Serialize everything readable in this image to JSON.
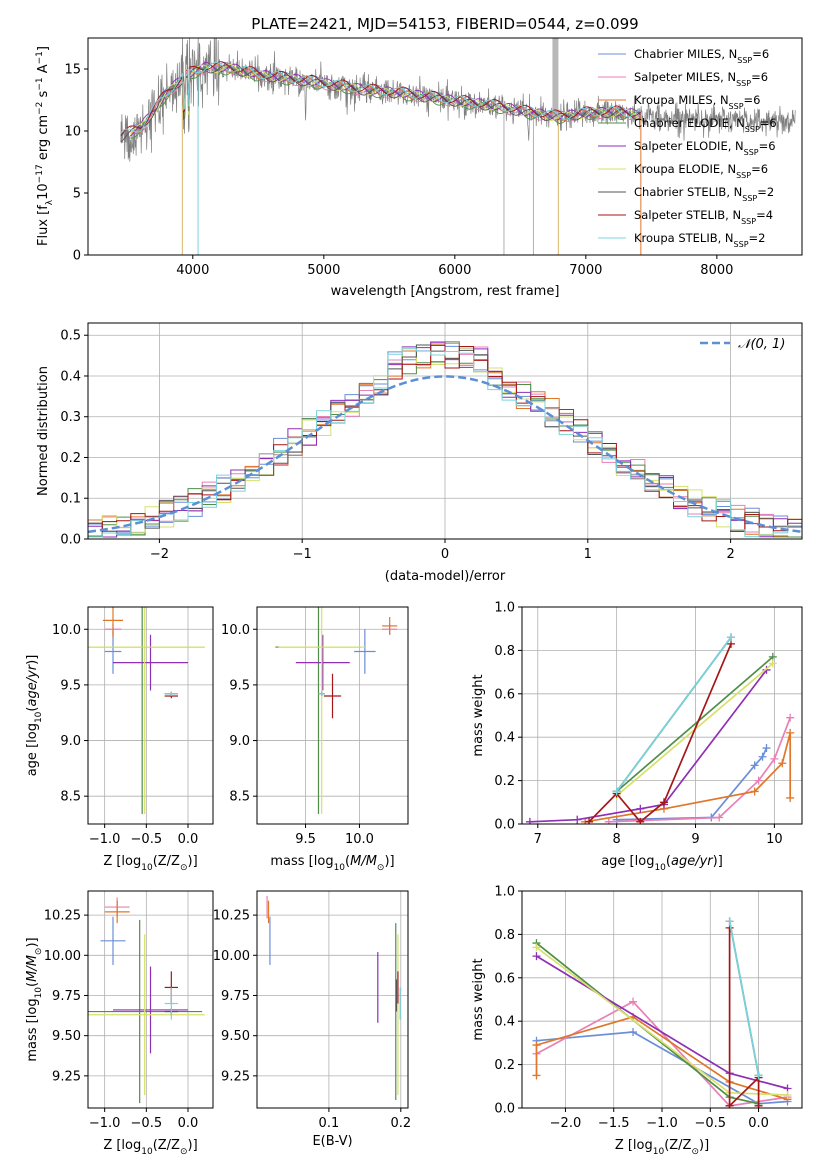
{
  "figure_title": "PLATE=2421, MJD=54153, FIBERID=0544, z=0.099",
  "colors": {
    "Chabrier MILES": "#6b8ed8",
    "Salpeter MILES": "#e87fb6",
    "Kroupa MILES": "#e0762a",
    "Chabrier ELODIE": "#4f8f48",
    "Salpeter ELODIE": "#8e2fb5",
    "Kroupa ELODIE": "#d7e06c",
    "Chabrier STELIB": "#555555",
    "Salpeter STELIB": "#a51616",
    "Kroupa STELIB": "#78d4dc"
  },
  "chart_data": [
    {
      "id": "spectrum",
      "type": "line",
      "title": "PLATE=2421, MJD=54153, FIBERID=0544, z=0.099",
      "xlabel": "wavelength [Angstrom, rest frame]",
      "ylabel": "Flux [fλ10⁻¹⁷ erg cm⁻² s⁻¹ A⁻¹]",
      "xlim": [
        3200,
        8650
      ],
      "ylim": [
        0,
        17.5
      ],
      "xticks": [
        4000,
        5000,
        6000,
        7000,
        8000
      ],
      "yticks": [
        0,
        5,
        10,
        15
      ],
      "legend_position": "upper-right",
      "legend": [
        {
          "name": "Chabrier MILES",
          "nssp": "6"
        },
        {
          "name": "Salpeter MILES",
          "nssp": "6"
        },
        {
          "name": "Kroupa MILES",
          "nssp": "6"
        },
        {
          "name": "Chabrier ELODIE",
          "nssp": "6"
        },
        {
          "name": "Salpeter ELODIE",
          "nssp": "6"
        },
        {
          "name": "Kroupa ELODIE",
          "nssp": "6"
        },
        {
          "name": "Chabrier STELIB",
          "nssp": "2"
        },
        {
          "name": "Salpeter STELIB",
          "nssp": "4"
        },
        {
          "name": "Kroupa STELIB",
          "nssp": "2"
        }
      ],
      "continuum": {
        "x": [
          3450,
          3600,
          3800,
          3950,
          4100,
          4300,
          4500,
          4800,
          5000,
          5300,
          5600,
          6000,
          6300,
          6600,
          6800,
          7000,
          7200,
          7400,
          7600,
          7800,
          8000,
          8200,
          8400,
          8600
        ],
        "y": [
          9.5,
          10.2,
          13.0,
          14.5,
          15.1,
          15.0,
          14.5,
          14.1,
          13.8,
          13.3,
          13.0,
          12.4,
          12.0,
          11.4,
          11.1,
          11.4,
          11.5,
          11.3,
          11.0,
          11.1,
          10.9,
          10.9,
          10.8,
          10.9
        ]
      }
    },
    {
      "id": "residuals",
      "type": "histogram",
      "xlabel": "(data-model)/error",
      "ylabel": "Normed distribution",
      "xlim": [
        -2.5,
        2.5
      ],
      "ylim": [
        0,
        0.53
      ],
      "xticks": [
        -2,
        -1,
        0,
        1,
        2
      ],
      "yticks": [
        0.0,
        0.1,
        0.2,
        0.3,
        0.4,
        0.5
      ],
      "reference_label": "𝒩(0, 1)",
      "bin_width": 0.1
    },
    {
      "id": "age_vs_Z",
      "type": "errorbar",
      "xlabel": "Z [log10(Z/Z⊙)]",
      "ylabel": "age [log10(age/yr)]",
      "xlim": [
        -1.2,
        0.3
      ],
      "ylim": [
        8.25,
        10.2
      ],
      "xticks": [
        -1.0,
        -0.5,
        0.0
      ],
      "yticks": [
        8.5,
        9.0,
        9.5,
        10.0
      ],
      "points": [
        {
          "model": "Chabrier MILES",
          "x": -0.9,
          "y": 9.8,
          "xerr": 0.1,
          "yerr": 0.2
        },
        {
          "model": "Salpeter MILES",
          "x": -0.9,
          "y": 10.0,
          "xerr": 0.1,
          "yerr": 0.05
        },
        {
          "model": "Kroupa MILES",
          "x": -0.9,
          "y": 10.08,
          "xerr": 0.12,
          "yerr": 0.15
        },
        {
          "model": "Chabrier ELODIE",
          "x": -0.55,
          "y": 9.84,
          "xerr": 0.75,
          "yerr": 1.5
        },
        {
          "model": "Salpeter ELODIE",
          "x": -0.45,
          "y": 9.7,
          "xerr": 0.45,
          "yerr": 0.25
        },
        {
          "model": "Kroupa ELODIE",
          "x": -0.52,
          "y": 9.84,
          "xerr": 0.72,
          "yerr": 1.5
        },
        {
          "model": "Chabrier STELIB",
          "x": -0.2,
          "y": 9.42,
          "xerr": 0.08,
          "yerr": 0.02
        },
        {
          "model": "Salpeter STELIB",
          "x": -0.2,
          "y": 9.4,
          "xerr": 0.08,
          "yerr": 0.02
        },
        {
          "model": "Kroupa STELIB",
          "x": -0.2,
          "y": 9.42,
          "xerr": 0.08,
          "yerr": 0.02
        }
      ]
    },
    {
      "id": "age_vs_mass",
      "type": "errorbar",
      "xlabel": "mass [log10(M/M⊙)]",
      "ylabel": "",
      "xlim": [
        9.05,
        10.45
      ],
      "ylim": [
        8.25,
        10.2
      ],
      "xticks": [
        9.5,
        10.0
      ],
      "yticks": [
        8.5,
        9.0,
        9.5,
        10.0
      ],
      "points": [
        {
          "model": "Chabrier MILES",
          "x": 10.05,
          "y": 9.8,
          "xerr": 0.1,
          "yerr": 0.2
        },
        {
          "model": "Salpeter MILES",
          "x": 10.28,
          "y": 10.0,
          "xerr": 0.07,
          "yerr": 0.05
        },
        {
          "model": "Kroupa MILES",
          "x": 10.28,
          "y": 10.03,
          "xerr": 0.07,
          "yerr": 0.08
        },
        {
          "model": "Chabrier ELODIE",
          "x": 9.62,
          "y": 9.84,
          "xerr": 0.4,
          "yerr": 1.5
        },
        {
          "model": "Salpeter ELODIE",
          "x": 9.66,
          "y": 9.7,
          "xerr": 0.25,
          "yerr": 0.25
        },
        {
          "model": "Kroupa ELODIE",
          "x": 9.65,
          "y": 9.84,
          "xerr": 0.4,
          "yerr": 1.5
        },
        {
          "model": "Chabrier STELIB",
          "x": 9.65,
          "y": 9.42,
          "xerr": 0.03,
          "yerr": 0.02
        },
        {
          "model": "Salpeter STELIB",
          "x": 9.75,
          "y": 9.4,
          "xerr": 0.08,
          "yerr": 0.2
        },
        {
          "model": "Kroupa STELIB",
          "x": 9.65,
          "y": 9.42,
          "xerr": 0.03,
          "yerr": 0.02
        }
      ]
    },
    {
      "id": "weight_vs_age",
      "type": "line",
      "xlabel": "age [log10(age/yr)]",
      "ylabel": "mass weight",
      "xlim": [
        6.8,
        10.35
      ],
      "ylim": [
        0,
        1.0
      ],
      "xticks": [
        7,
        8,
        9,
        10
      ],
      "yticks": [
        0.0,
        0.2,
        0.4,
        0.6,
        0.8,
        1.0
      ],
      "series": [
        {
          "model": "Chabrier MILES",
          "x": [
            8.0,
            9.2,
            9.75,
            9.85,
            9.9
          ],
          "y": [
            0.02,
            0.03,
            0.27,
            0.31,
            0.35
          ]
        },
        {
          "model": "Salpeter MILES",
          "x": [
            7.9,
            9.3,
            9.8,
            10.0,
            10.2
          ],
          "y": [
            0.01,
            0.03,
            0.2,
            0.3,
            0.49
          ]
        },
        {
          "model": "Kroupa MILES",
          "x": [
            7.6,
            8.6,
            9.75,
            10.1,
            10.2,
            10.2
          ],
          "y": [
            0.01,
            0.07,
            0.15,
            0.28,
            0.42,
            0.12
          ]
        },
        {
          "model": "Chabrier ELODIE",
          "x": [
            8.0,
            9.98
          ],
          "y": [
            0.15,
            0.77
          ]
        },
        {
          "model": "Salpeter ELODIE",
          "x": [
            6.9,
            7.5,
            8.3,
            8.6,
            9.9
          ],
          "y": [
            0.01,
            0.02,
            0.07,
            0.09,
            0.71
          ]
        },
        {
          "model": "Kroupa ELODIE",
          "x": [
            8.0,
            9.98
          ],
          "y": [
            0.13,
            0.74
          ]
        },
        {
          "model": "Chabrier STELIB",
          "x": [
            8.0,
            9.45
          ],
          "y": [
            0.15,
            0.86
          ]
        },
        {
          "model": "Salpeter STELIB",
          "x": [
            7.65,
            8.0,
            8.3,
            8.6,
            9.45
          ],
          "y": [
            0.01,
            0.14,
            0.01,
            0.1,
            0.83
          ]
        },
        {
          "model": "Kroupa STELIB",
          "x": [
            8.0,
            9.45
          ],
          "y": [
            0.15,
            0.86
          ]
        }
      ]
    },
    {
      "id": "mass_vs_Z",
      "type": "errorbar",
      "xlabel": "Z [log10(Z/Z⊙)]",
      "ylabel": "mass [log10(M/M⊙)]",
      "xlim": [
        -1.2,
        0.3
      ],
      "ylim": [
        9.05,
        10.4
      ],
      "xticks": [
        -1.0,
        -0.5,
        0.0
      ],
      "yticks": [
        9.25,
        9.5,
        9.75,
        10.0,
        10.25
      ],
      "points": [
        {
          "model": "Chabrier MILES",
          "x": -0.9,
          "y": 10.09,
          "xerr": 0.15,
          "yerr": 0.15
        },
        {
          "model": "Salpeter MILES",
          "x": -0.85,
          "y": 10.3,
          "xerr": 0.15,
          "yerr": 0.06
        },
        {
          "model": "Kroupa MILES",
          "x": -0.85,
          "y": 10.27,
          "xerr": 0.15,
          "yerr": 0.07
        },
        {
          "model": "Chabrier ELODIE",
          "x": -0.58,
          "y": 9.65,
          "xerr": 0.75,
          "yerr": 0.57
        },
        {
          "model": "Salpeter ELODIE",
          "x": -0.45,
          "y": 9.66,
          "xerr": 0.45,
          "yerr": 0.27
        },
        {
          "model": "Kroupa ELODIE",
          "x": -0.52,
          "y": 9.63,
          "xerr": 0.72,
          "yerr": 0.5
        },
        {
          "model": "Chabrier STELIB",
          "x": -0.2,
          "y": 9.65,
          "xerr": 0.08,
          "yerr": 0.02
        },
        {
          "model": "Salpeter STELIB",
          "x": -0.2,
          "y": 9.8,
          "xerr": 0.08,
          "yerr": 0.1
        },
        {
          "model": "Kroupa STELIB",
          "x": -0.2,
          "y": 9.7,
          "xerr": 0.08,
          "yerr": 0.1
        }
      ]
    },
    {
      "id": "mass_vs_ebv",
      "type": "errorbar",
      "xlabel": "E(B-V)",
      "ylabel": "",
      "xlim": [
        0.0,
        0.21
      ],
      "ylim": [
        9.05,
        10.4
      ],
      "xticks": [
        0.1,
        0.2
      ],
      "yticks": [
        9.25,
        9.5,
        9.75,
        10.0,
        10.25
      ],
      "points": [
        {
          "model": "Chabrier MILES",
          "x": 0.018,
          "y": 10.09,
          "xerr": 0.0,
          "yerr": 0.15
        },
        {
          "model": "Salpeter MILES",
          "x": 0.014,
          "y": 10.3,
          "xerr": 0.0,
          "yerr": 0.07
        },
        {
          "model": "Kroupa MILES",
          "x": 0.016,
          "y": 10.27,
          "xerr": 0.0,
          "yerr": 0.07
        },
        {
          "model": "Chabrier ELODIE",
          "x": 0.193,
          "y": 9.65,
          "xerr": 0.0,
          "yerr": 0.55
        },
        {
          "model": "Salpeter ELODIE",
          "x": 0.168,
          "y": 9.8,
          "xerr": 0.0,
          "yerr": 0.22
        },
        {
          "model": "Kroupa ELODIE",
          "x": 0.196,
          "y": 9.63,
          "xerr": 0.0,
          "yerr": 0.5
        },
        {
          "model": "Chabrier STELIB",
          "x": 0.194,
          "y": 9.75,
          "xerr": 0.0,
          "yerr": 0.1
        },
        {
          "model": "Salpeter STELIB",
          "x": 0.196,
          "y": 9.8,
          "xerr": 0.0,
          "yerr": 0.1
        },
        {
          "model": "Kroupa STELIB",
          "x": 0.199,
          "y": 9.7,
          "xerr": 0.0,
          "yerr": 0.1
        }
      ]
    },
    {
      "id": "weight_vs_Z",
      "type": "line",
      "xlabel": "Z [log10(Z/Z⊙)]",
      "ylabel": "mass weight",
      "xlim": [
        -2.45,
        0.45
      ],
      "ylim": [
        0,
        1.0
      ],
      "xticks": [
        -2.0,
        -1.5,
        -1.0,
        -0.5,
        0.0
      ],
      "yticks": [
        0.0,
        0.2,
        0.4,
        0.6,
        0.8,
        1.0
      ],
      "series": [
        {
          "model": "Chabrier MILES",
          "x": [
            -2.3,
            -1.3,
            0.0,
            0.3
          ],
          "y": [
            0.31,
            0.35,
            0.02,
            0.03
          ]
        },
        {
          "model": "Salpeter MILES",
          "x": [
            -2.3,
            -1.3,
            -0.3,
            0.3
          ],
          "y": [
            0.25,
            0.49,
            0.01,
            0.05
          ]
        },
        {
          "model": "Kroupa MILES",
          "x": [
            -2.3,
            -2.3,
            -1.3,
            -0.3,
            0.3
          ],
          "y": [
            0.15,
            0.29,
            0.42,
            0.12,
            0.04
          ]
        },
        {
          "model": "Chabrier ELODIE",
          "x": [
            -2.3,
            -0.3,
            0.0
          ],
          "y": [
            0.76,
            0.05,
            0.02
          ]
        },
        {
          "model": "Salpeter ELODIE",
          "x": [
            -2.3,
            -0.3,
            0.3
          ],
          "y": [
            0.7,
            0.16,
            0.09
          ]
        },
        {
          "model": "Kroupa ELODIE",
          "x": [
            -2.3,
            -0.3,
            0.3
          ],
          "y": [
            0.74,
            0.07,
            0.06
          ]
        },
        {
          "model": "Chabrier STELIB",
          "x": [
            -0.3,
            0.0
          ],
          "y": [
            0.86,
            0.15
          ]
        },
        {
          "model": "Salpeter STELIB",
          "x": [
            -0.3,
            -0.3,
            0.0,
            0.0
          ],
          "y": [
            0.83,
            0.01,
            0.14,
            0.01
          ]
        },
        {
          "model": "Kroupa STELIB",
          "x": [
            -0.3,
            0.0
          ],
          "y": [
            0.86,
            0.15
          ]
        }
      ]
    }
  ]
}
